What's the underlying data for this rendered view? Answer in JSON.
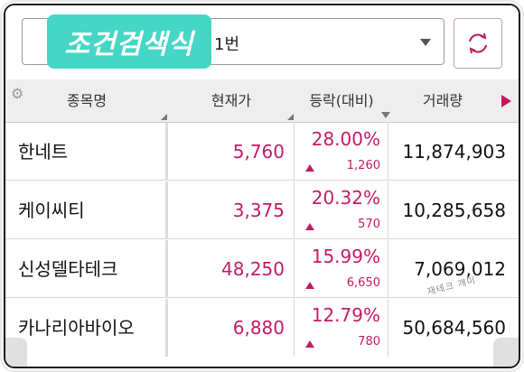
{
  "search": {
    "badge_label": "조건검색식",
    "condition_value": "1번"
  },
  "table": {
    "headers": {
      "name": "종목명",
      "price": "현재가",
      "change": "등락(대비)",
      "volume": "거래량"
    },
    "rows": [
      {
        "name": "한네트",
        "price": "5,760",
        "pct": "28.00%",
        "diff": "1,260",
        "volume": "11,874,903"
      },
      {
        "name": "케이씨티",
        "price": "3,375",
        "pct": "20.32%",
        "diff": "570",
        "volume": "10,285,658"
      },
      {
        "name": "신성델타테크",
        "price": "48,250",
        "pct": "15.99%",
        "diff": "6,650",
        "volume": "7,069,012"
      },
      {
        "name": "카나리아바이오",
        "price": "6,880",
        "pct": "12.79%",
        "diff": "780",
        "volume": "50,684,560"
      }
    ]
  },
  "watermark": "재테크 개미",
  "icons": {
    "refresh": "refresh-icon",
    "settings": "gear-icon",
    "scroll": "scroll-right-icon",
    "dropdown": "caret-down-icon",
    "up": "up-triangle-icon"
  },
  "colors": {
    "accent": "#c21c67",
    "badge": "#46d6c6"
  }
}
